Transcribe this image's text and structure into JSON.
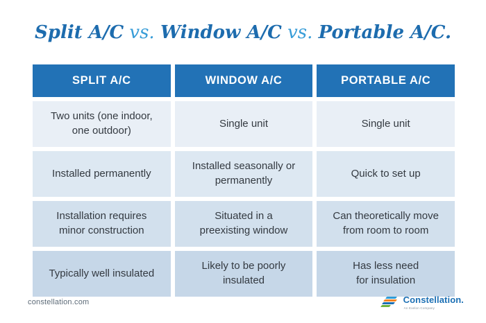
{
  "title": {
    "part1": "Split A/C",
    "vs1": " vs. ",
    "part2": "Window A/C",
    "vs2": " vs. ",
    "part3": "Portable A/C."
  },
  "table": {
    "headers": [
      "SPLIT A/C",
      "WINDOW A/C",
      "PORTABLE A/C"
    ],
    "rows": [
      {
        "cells": [
          "Two units (one indoor,\none outdoor)",
          "Single unit",
          "Single unit"
        ]
      },
      {
        "cells": [
          "Installed permanently",
          "Installed seasonally or\npermanently",
          "Quick to set up"
        ]
      },
      {
        "cells": [
          "Installation requires\nminor construction",
          "Situated in a\npreexisting window",
          "Can theoretically move\nfrom room to room"
        ]
      },
      {
        "cells": [
          "Typically well insulated",
          "Likely to be poorly\ninsulated",
          "Has less need\nfor insulation"
        ]
      }
    ]
  },
  "footer": {
    "website": "constellation.com",
    "logo_text": "Constellation.",
    "logo_subtext": "An Exelon Company"
  },
  "colors": {
    "header_bg": "#2272b6",
    "row1_bg": "#e9eff6",
    "row2_bg": "#dde8f2",
    "row3_bg": "#d2e0ed",
    "row4_bg": "#c6d7e8",
    "title_dark_blue": "#1d6cae",
    "title_vs_blue": "#389dd8",
    "cell_text": "#333940",
    "footer_text": "#5c6a77",
    "logo_blue": "#1b6fb4",
    "logo_orange": "#f58220",
    "logo_green": "#6cb33f",
    "logo_light_blue": "#2e9bd6"
  }
}
